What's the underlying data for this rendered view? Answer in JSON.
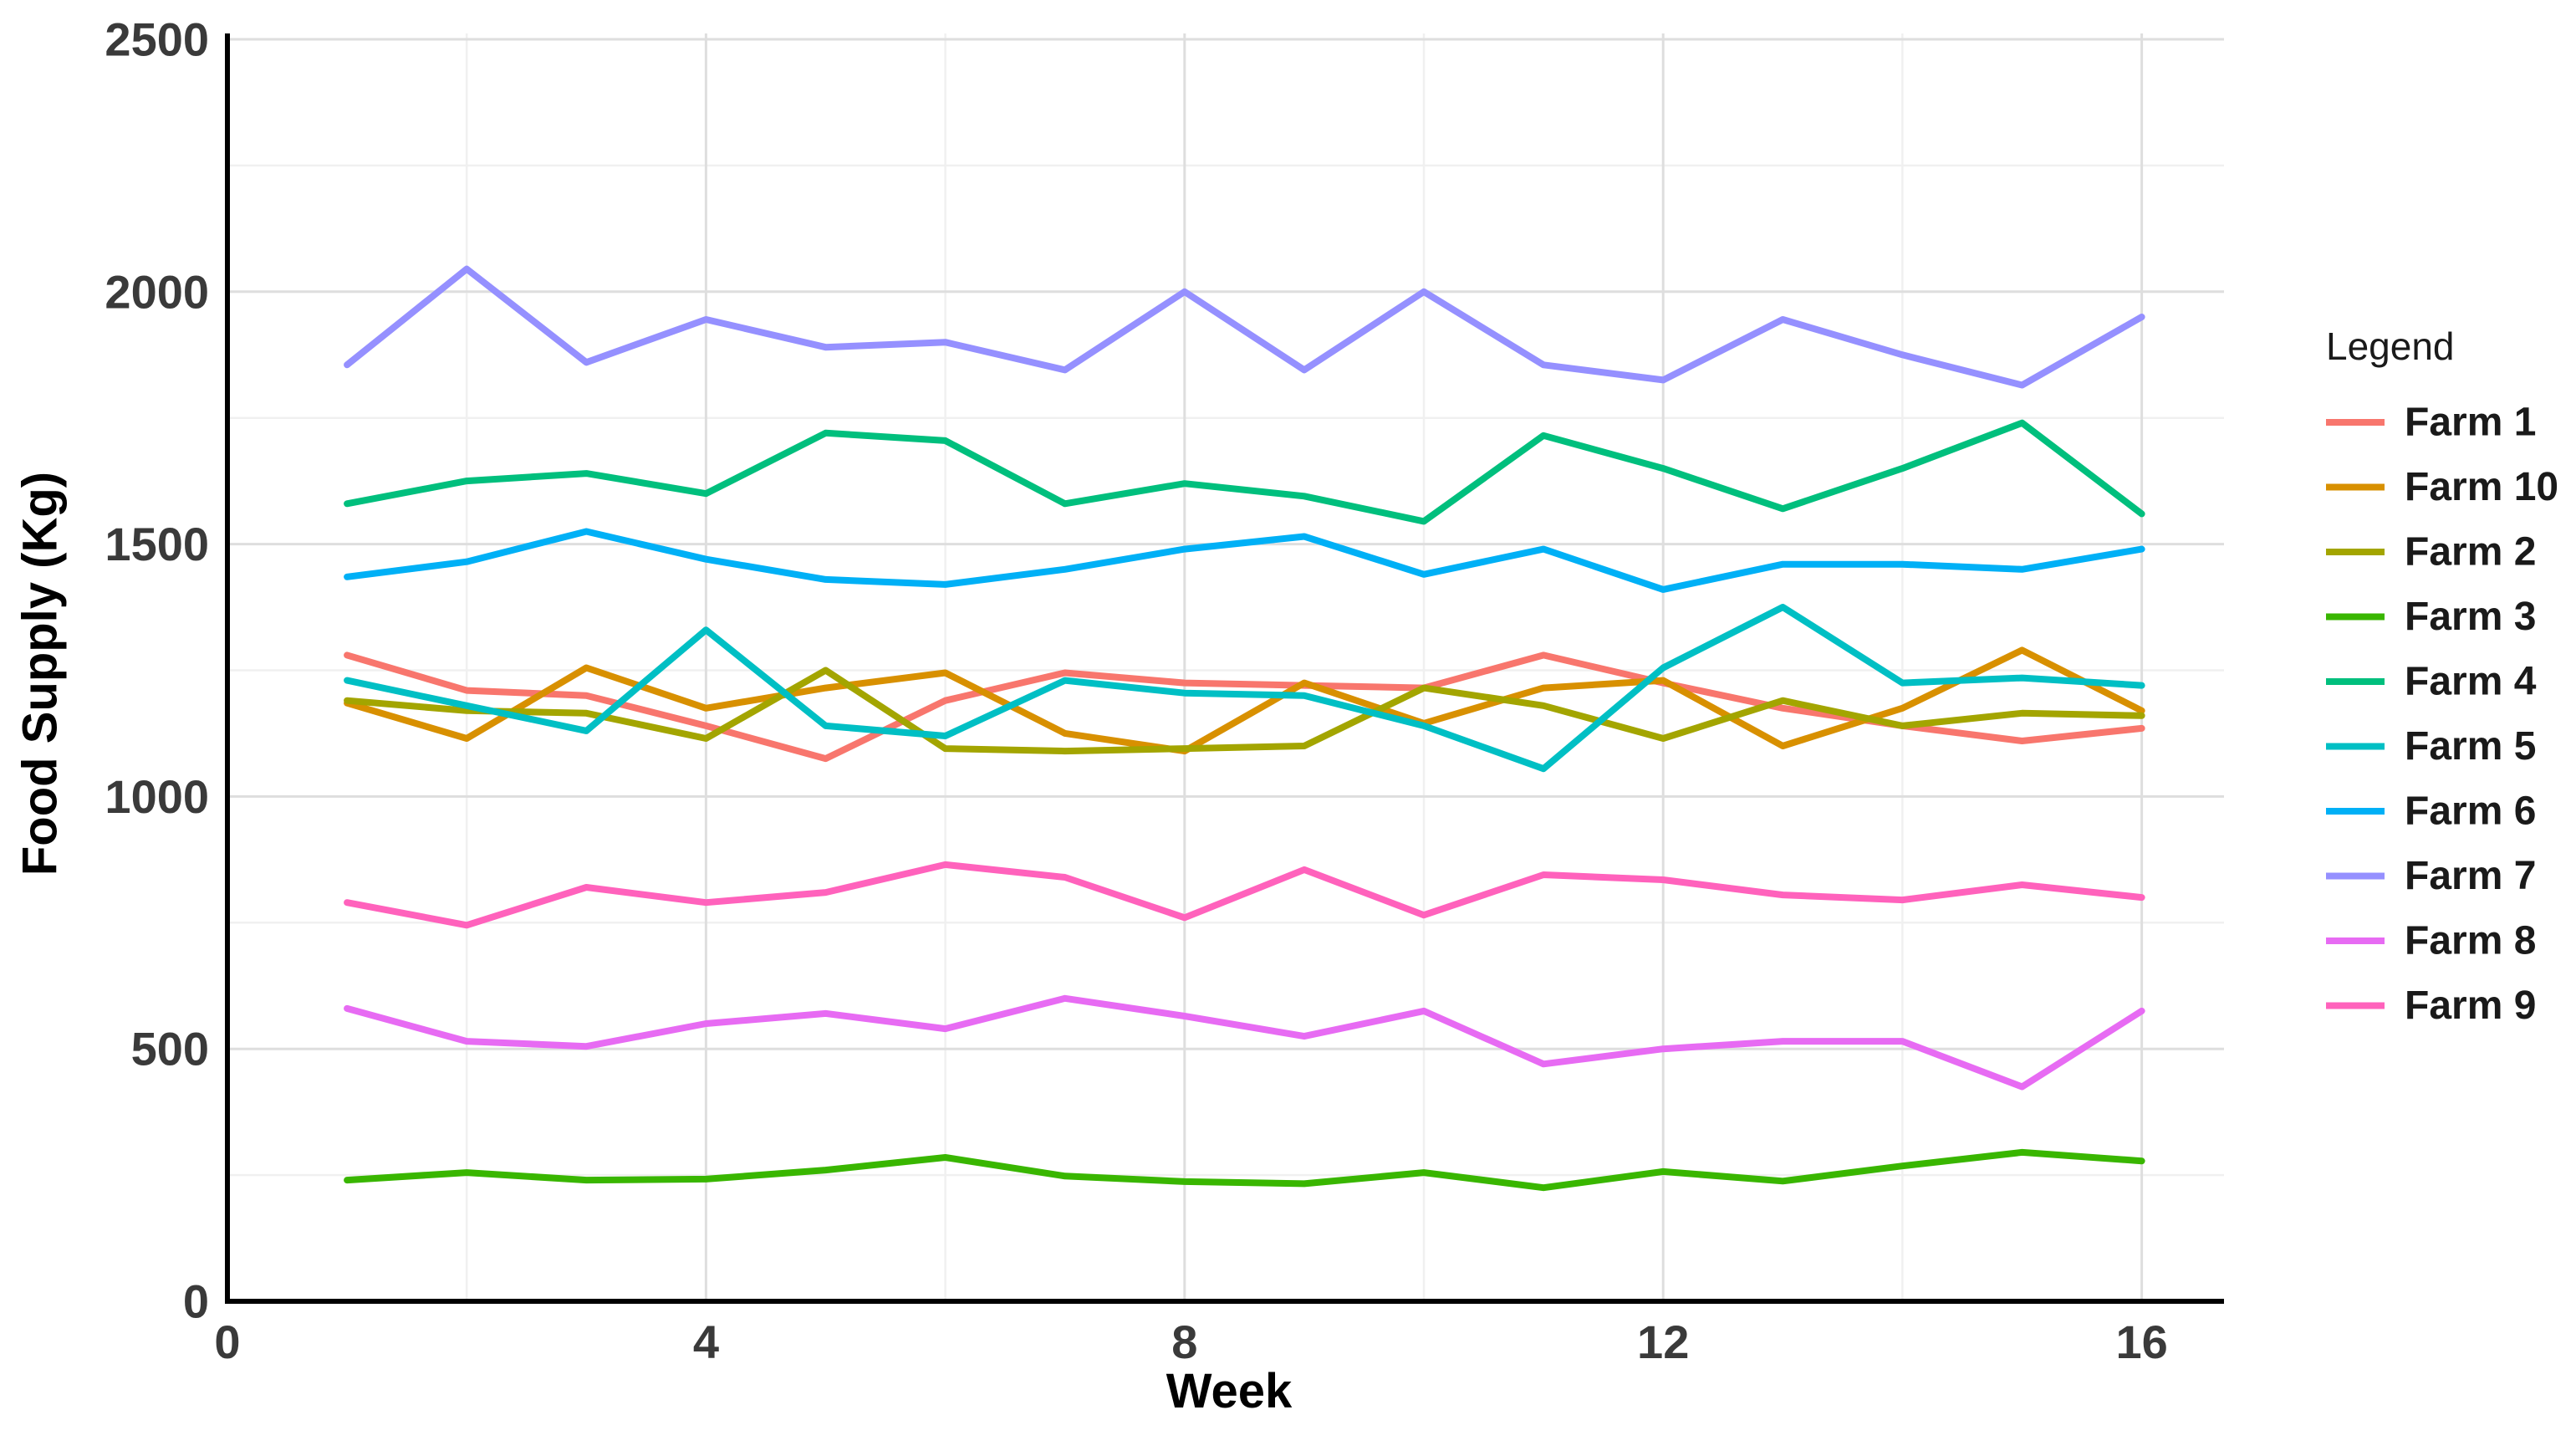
{
  "chart_data": {
    "type": "line",
    "title": "",
    "xlabel": "Week",
    "ylabel": "Food Supply (Kg)",
    "legend_title": "Legend",
    "x": [
      1,
      2,
      3,
      4,
      5,
      6,
      7,
      8,
      9,
      10,
      11,
      12,
      13,
      14,
      15,
      16
    ],
    "xlim": [
      0,
      16.7
    ],
    "ylim": [
      0,
      2500
    ],
    "xticks": [
      0,
      4,
      8,
      12,
      16
    ],
    "yticks": [
      0,
      500,
      1000,
      1500,
      2000,
      2500
    ],
    "xticks_minor": [
      2,
      6,
      10,
      14
    ],
    "yticks_minor": [
      250,
      750,
      1250,
      1750,
      2250
    ],
    "grid": "on",
    "legend_position": "right",
    "axis_color": "#000000",
    "tick_label_color": "#3a3a3a",
    "grid_major_color": "#dedede",
    "grid_minor_color": "#f0f0f0",
    "series": [
      {
        "name": "Farm 1",
        "color": "#F8766D",
        "values": [
          1280,
          1210,
          1200,
          1140,
          1075,
          1190,
          1245,
          1225,
          1220,
          1215,
          1280,
          1225,
          1175,
          1140,
          1110,
          1135
        ]
      },
      {
        "name": "Farm 10",
        "color": "#D89000",
        "values": [
          1185,
          1115,
          1255,
          1175,
          1215,
          1245,
          1125,
          1090,
          1225,
          1145,
          1215,
          1230,
          1100,
          1175,
          1290,
          1170
        ]
      },
      {
        "name": "Farm 2",
        "color": "#A3A500",
        "values": [
          1190,
          1170,
          1165,
          1115,
          1250,
          1095,
          1090,
          1095,
          1100,
          1215,
          1180,
          1115,
          1190,
          1140,
          1165,
          1160
        ]
      },
      {
        "name": "Farm 3",
        "color": "#39B600",
        "values": [
          240,
          255,
          240,
          242,
          260,
          285,
          248,
          237,
          233,
          255,
          225,
          257,
          238,
          268,
          295,
          278
        ]
      },
      {
        "name": "Farm 4",
        "color": "#00BF7D",
        "values": [
          1580,
          1625,
          1640,
          1600,
          1720,
          1705,
          1580,
          1620,
          1595,
          1545,
          1715,
          1650,
          1570,
          1650,
          1740,
          1560
        ]
      },
      {
        "name": "Farm 5",
        "color": "#00BFC4",
        "values": [
          1230,
          1180,
          1130,
          1330,
          1140,
          1120,
          1230,
          1205,
          1200,
          1140,
          1055,
          1255,
          1375,
          1225,
          1235,
          1220
        ]
      },
      {
        "name": "Farm 6",
        "color": "#00B0F6",
        "values": [
          1435,
          1465,
          1525,
          1470,
          1430,
          1420,
          1450,
          1490,
          1515,
          1440,
          1490,
          1410,
          1460,
          1460,
          1450,
          1490
        ]
      },
      {
        "name": "Farm 7",
        "color": "#9590FF",
        "values": [
          1855,
          2045,
          1860,
          1945,
          1890,
          1900,
          1845,
          2000,
          1845,
          2000,
          1855,
          1825,
          1945,
          1875,
          1815,
          1950
        ]
      },
      {
        "name": "Farm 8",
        "color": "#E76BF3",
        "values": [
          580,
          515,
          505,
          550,
          570,
          540,
          600,
          565,
          525,
          575,
          470,
          500,
          515,
          515,
          425,
          575
        ]
      },
      {
        "name": "Farm 9",
        "color": "#FF62BC",
        "values": [
          790,
          745,
          820,
          790,
          810,
          865,
          840,
          760,
          855,
          765,
          845,
          835,
          805,
          795,
          825,
          800
        ]
      }
    ]
  }
}
